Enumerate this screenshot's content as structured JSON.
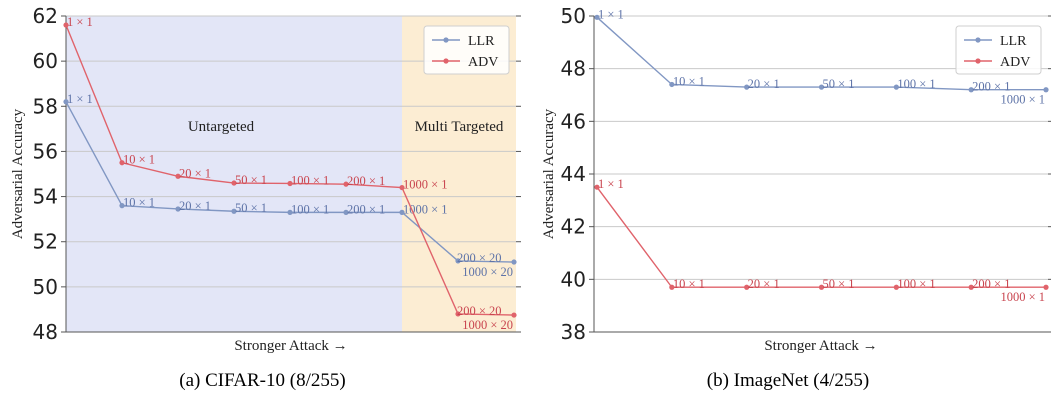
{
  "colors": {
    "llr": "#8197c3",
    "adv": "#e0636b",
    "untargeted_bg": "#e3e6f7",
    "multi_bg": "#fcedd3",
    "grid": "#c9c9c9",
    "axis": "#555555",
    "point_label_llr": "#5f74a8",
    "point_label_adv": "#c9454f"
  },
  "captions": [
    "(a) CIFAR-10 (8/255)",
    "(b) ImageNet (4/255)"
  ],
  "chart_data": [
    {
      "type": "line",
      "ylabel": "Adversarial   Accuracy",
      "xlabel": "Stronger Attack →",
      "ylim": [
        48,
        62
      ],
      "yticks": [
        48,
        50,
        52,
        54,
        56,
        58,
        60,
        62
      ],
      "grid": true,
      "legend": "top-right",
      "point_labels": [
        "1 × 1",
        "10 × 1",
        "20 × 1",
        "50 × 1",
        "100 × 1",
        "200 × 1",
        "1000 × 1",
        "200 × 20",
        "1000 × 20"
      ],
      "x": [
        0,
        1,
        2,
        3,
        4,
        5,
        6,
        7,
        8
      ],
      "regions": [
        {
          "label": "Untargeted",
          "from": 0,
          "to": 6.0
        },
        {
          "label": "Multi Targeted",
          "from": 6.0,
          "to": 8
        }
      ],
      "series": [
        {
          "name": "LLR",
          "values": [
            58.2,
            53.6,
            53.45,
            53.35,
            53.3,
            53.3,
            53.3,
            51.15,
            51.1
          ]
        },
        {
          "name": "ADV",
          "values": [
            61.6,
            55.5,
            54.9,
            54.6,
            54.58,
            54.55,
            54.4,
            48.8,
            48.75
          ]
        }
      ]
    },
    {
      "type": "line",
      "ylabel": "Adversarial   Accuracy",
      "xlabel": "Stronger Attack →",
      "ylim": [
        38,
        50
      ],
      "yticks": [
        38,
        40,
        42,
        44,
        46,
        48,
        50
      ],
      "grid": true,
      "legend": "top-right",
      "point_labels": [
        "1 × 1",
        "10 × 1",
        "20 × 1",
        "50 × 1",
        "100 × 1",
        "200 × 1",
        "1000 × 1"
      ],
      "x": [
        0,
        1,
        2,
        3,
        4,
        5,
        6
      ],
      "series": [
        {
          "name": "LLR",
          "values": [
            49.95,
            47.4,
            47.3,
            47.3,
            47.3,
            47.2,
            47.2
          ]
        },
        {
          "name": "ADV",
          "values": [
            43.5,
            39.7,
            39.7,
            39.7,
            39.7,
            39.7,
            39.7
          ]
        }
      ]
    }
  ]
}
